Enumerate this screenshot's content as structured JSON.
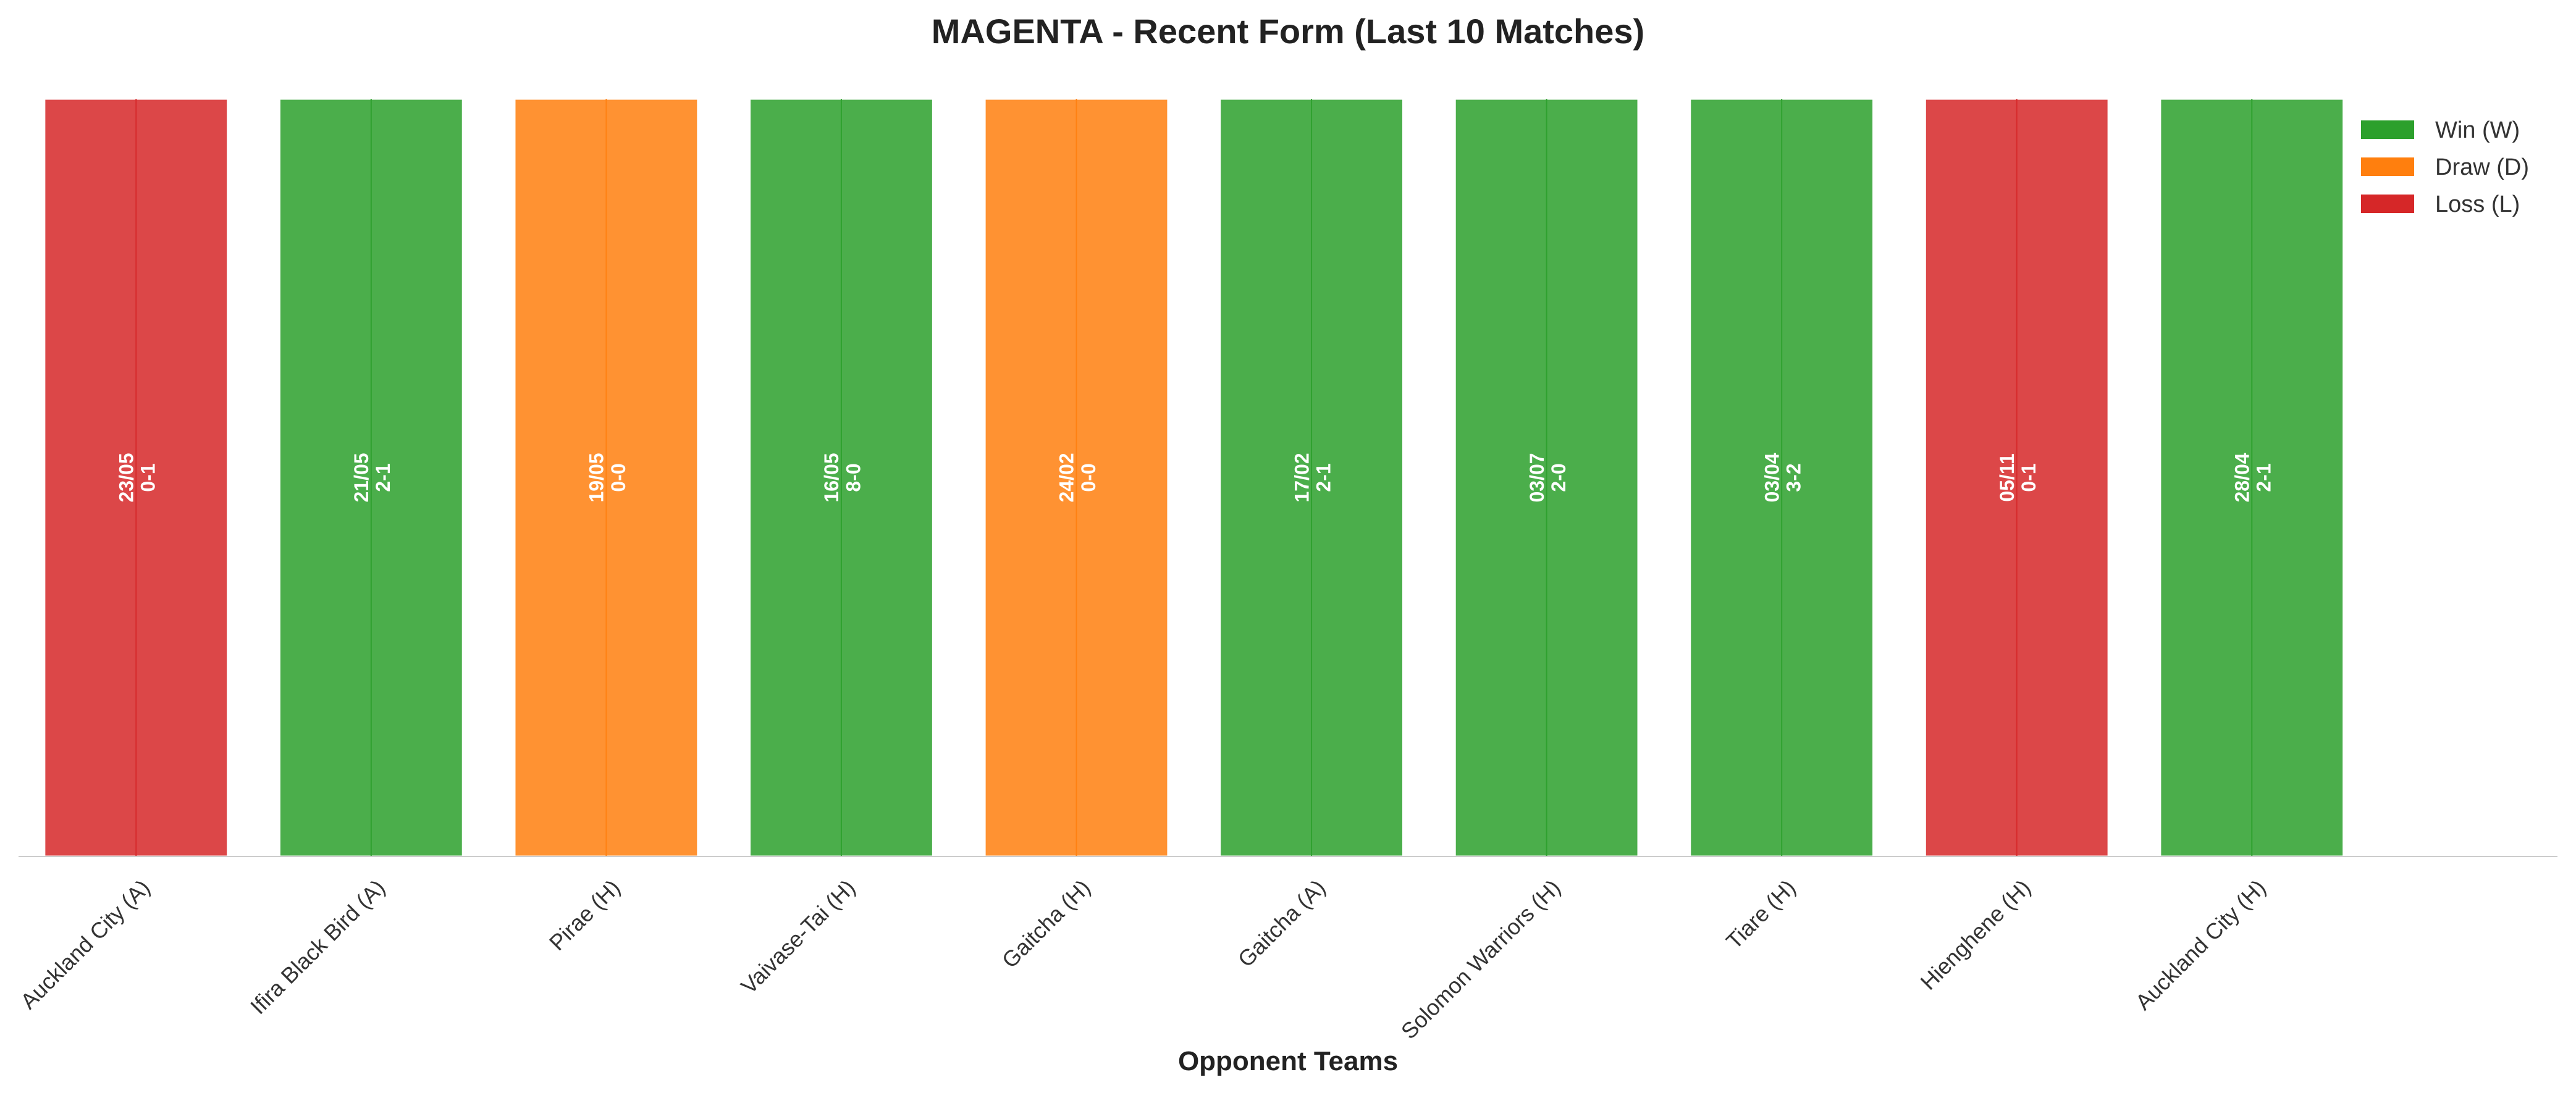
{
  "chart_data": {
    "type": "bar",
    "title": "MAGENTA - Recent Form (Last 10 Matches)",
    "xlabel": "Opponent Teams",
    "ylabel": "",
    "ylim": [
      0,
      1
    ],
    "grid": false,
    "legend_position": "top-right",
    "categories": [
      "Auckland City (A)",
      "Ifira Black Bird (A)",
      "Pirae (H)",
      "Vaivase-Tai (H)",
      "Gaitcha (H)",
      "Gaitcha (A)",
      "Solomon Warriors (H)",
      "Tiare (H)",
      "Hienghene (H)",
      "Auckland City (H)"
    ],
    "values": [
      1,
      1,
      1,
      1,
      1,
      1,
      1,
      1,
      1,
      1
    ],
    "results": [
      "L",
      "W",
      "D",
      "W",
      "D",
      "W",
      "W",
      "W",
      "L",
      "W"
    ],
    "dates": [
      "23/05",
      "21/05",
      "19/05",
      "16/05",
      "24/02",
      "17/02",
      "03/07",
      "03/04",
      "05/11",
      "28/04"
    ],
    "scores": [
      "0-1",
      "2-1",
      "0-0",
      "8-0",
      "0-0",
      "2-1",
      "2-0",
      "3-2",
      "0-1",
      "2-1"
    ],
    "legend": [
      {
        "key": "W",
        "label": "Win (W)"
      },
      {
        "key": "D",
        "label": "Draw (D)"
      },
      {
        "key": "L",
        "label": "Loss (L)"
      }
    ],
    "colors": {
      "W": "#2ca02c",
      "D": "#ff7f0e",
      "L": "#d62728"
    }
  }
}
